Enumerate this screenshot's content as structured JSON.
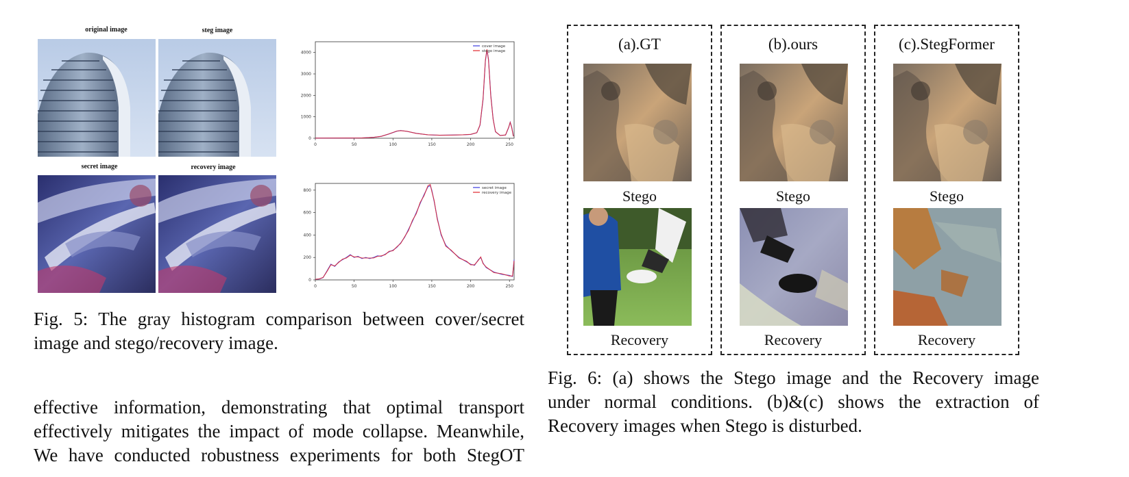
{
  "fig5": {
    "titles": {
      "original": "original image",
      "steg": "steg image",
      "secret": "secret image",
      "recovery": "recovery image"
    },
    "caption_lines": [
      "Fig. 5: The gray histogram comparison between cover/secret",
      "image and stego/recovery image."
    ]
  },
  "chart_data": [
    {
      "type": "line",
      "title": "",
      "xlabel": "",
      "ylabel": "",
      "xlim": [
        0,
        256
      ],
      "ylim": [
        0,
        4500
      ],
      "x_ticks": [
        0,
        50,
        100,
        150,
        200,
        250
      ],
      "y_ticks": [
        0,
        1000,
        2000,
        3000,
        4000
      ],
      "legend_position": "top-right",
      "series": [
        {
          "name": "cover image",
          "color": "#3a3adf",
          "points": [
            [
              0,
              5
            ],
            [
              40,
              8
            ],
            [
              60,
              15
            ],
            [
              75,
              40
            ],
            [
              85,
              90
            ],
            [
              95,
              200
            ],
            [
              105,
              330
            ],
            [
              110,
              360
            ],
            [
              118,
              320
            ],
            [
              130,
              230
            ],
            [
              145,
              160
            ],
            [
              160,
              140
            ],
            [
              175,
              150
            ],
            [
              190,
              160
            ],
            [
              200,
              180
            ],
            [
              208,
              260
            ],
            [
              212,
              600
            ],
            [
              216,
              1800
            ],
            [
              219,
              3600
            ],
            [
              221,
              4100
            ],
            [
              223,
              3700
            ],
            [
              226,
              2000
            ],
            [
              229,
              900
            ],
            [
              232,
              300
            ],
            [
              238,
              130
            ],
            [
              245,
              150
            ],
            [
              249,
              500
            ],
            [
              251,
              750
            ],
            [
              253,
              500
            ],
            [
              255,
              100
            ]
          ]
        },
        {
          "name": "stego image",
          "color": "#e0242c",
          "points": [
            [
              0,
              5
            ],
            [
              40,
              9
            ],
            [
              60,
              14
            ],
            [
              75,
              42
            ],
            [
              85,
              88
            ],
            [
              95,
              205
            ],
            [
              105,
              335
            ],
            [
              110,
              355
            ],
            [
              118,
              325
            ],
            [
              130,
              228
            ],
            [
              145,
              162
            ],
            [
              160,
              142
            ],
            [
              175,
              148
            ],
            [
              190,
              162
            ],
            [
              200,
              182
            ],
            [
              208,
              258
            ],
            [
              212,
              620
            ],
            [
              216,
              1850
            ],
            [
              219,
              3650
            ],
            [
              221,
              4150
            ],
            [
              223,
              3650
            ],
            [
              226,
              1950
            ],
            [
              229,
              880
            ],
            [
              232,
              310
            ],
            [
              238,
              128
            ],
            [
              245,
              152
            ],
            [
              249,
              520
            ],
            [
              251,
              740
            ],
            [
              253,
              480
            ],
            [
              255,
              90
            ]
          ]
        }
      ]
    },
    {
      "type": "line",
      "title": "",
      "xlabel": "",
      "ylabel": "",
      "xlim": [
        0,
        256
      ],
      "ylim": [
        0,
        860
      ],
      "x_ticks": [
        0,
        50,
        100,
        150,
        200,
        250
      ],
      "y_ticks": [
        0,
        200,
        400,
        600,
        800
      ],
      "legend_position": "top-right",
      "series": [
        {
          "name": "secret image",
          "color": "#3a3adf",
          "points": [
            [
              0,
              5
            ],
            [
              5,
              8
            ],
            [
              10,
              20
            ],
            [
              15,
              80
            ],
            [
              20,
              140
            ],
            [
              25,
              120
            ],
            [
              30,
              160
            ],
            [
              35,
              180
            ],
            [
              40,
              200
            ],
            [
              45,
              225
            ],
            [
              50,
              200
            ],
            [
              55,
              210
            ],
            [
              60,
              190
            ],
            [
              65,
              200
            ],
            [
              70,
              190
            ],
            [
              75,
              200
            ],
            [
              80,
              215
            ],
            [
              85,
              210
            ],
            [
              90,
              230
            ],
            [
              95,
              250
            ],
            [
              100,
              265
            ],
            [
              105,
              290
            ],
            [
              110,
              330
            ],
            [
              115,
              380
            ],
            [
              120,
              450
            ],
            [
              125,
              520
            ],
            [
              130,
              600
            ],
            [
              135,
              680
            ],
            [
              140,
              760
            ],
            [
              145,
              830
            ],
            [
              148,
              840
            ],
            [
              150,
              800
            ],
            [
              153,
              700
            ],
            [
              157,
              550
            ],
            [
              162,
              400
            ],
            [
              168,
              310
            ],
            [
              175,
              260
            ],
            [
              185,
              200
            ],
            [
              195,
              160
            ],
            [
              200,
              140
            ],
            [
              205,
              130
            ],
            [
              210,
              180
            ],
            [
              213,
              200
            ],
            [
              216,
              150
            ],
            [
              220,
              110
            ],
            [
              230,
              70
            ],
            [
              240,
              50
            ],
            [
              250,
              40
            ],
            [
              254,
              30
            ],
            [
              256,
              180
            ]
          ]
        },
        {
          "name": "recovery image",
          "color": "#e0242c",
          "points": [
            [
              0,
              5
            ],
            [
              5,
              9
            ],
            [
              10,
              22
            ],
            [
              15,
              75
            ],
            [
              20,
              135
            ],
            [
              25,
              125
            ],
            [
              30,
              155
            ],
            [
              35,
              185
            ],
            [
              40,
              195
            ],
            [
              45,
              220
            ],
            [
              50,
              205
            ],
            [
              55,
              205
            ],
            [
              60,
              195
            ],
            [
              65,
              195
            ],
            [
              70,
              195
            ],
            [
              75,
              195
            ],
            [
              80,
              210
            ],
            [
              85,
              215
            ],
            [
              90,
              225
            ],
            [
              95,
              255
            ],
            [
              100,
              260
            ],
            [
              105,
              295
            ],
            [
              110,
              325
            ],
            [
              115,
              385
            ],
            [
              120,
              440
            ],
            [
              125,
              530
            ],
            [
              130,
              590
            ],
            [
              135,
              690
            ],
            [
              140,
              750
            ],
            [
              145,
              840
            ],
            [
              148,
              850
            ],
            [
              150,
              790
            ],
            [
              153,
              710
            ],
            [
              157,
              540
            ],
            [
              162,
              410
            ],
            [
              168,
              300
            ],
            [
              175,
              265
            ],
            [
              185,
              195
            ],
            [
              195,
              165
            ],
            [
              200,
              135
            ],
            [
              205,
              135
            ],
            [
              210,
              175
            ],
            [
              213,
              205
            ],
            [
              216,
              145
            ],
            [
              220,
              115
            ],
            [
              230,
              65
            ],
            [
              240,
              55
            ],
            [
              250,
              35
            ],
            [
              254,
              35
            ],
            [
              256,
              170
            ]
          ]
        }
      ]
    }
  ],
  "fig6": {
    "panels": [
      {
        "title": "(a).GT",
        "stego_label": "Stego",
        "recovery_label": "Recovery"
      },
      {
        "title": "(b).ours",
        "stego_label": "Stego",
        "recovery_label": "Recovery"
      },
      {
        "title": "(c).StegFormer",
        "stego_label": "Stego",
        "recovery_label": "Recovery"
      }
    ],
    "caption_lines": [
      "Fig. 6: (a) shows the Stego image and the Recovery image",
      "under normal conditions. (b)&(c) shows the extraction of",
      "Recovery images when Stego is disturbed."
    ]
  },
  "body_text_lines": [
    "effective information, demonstrating that optimal transport",
    "effectively mitigates the impact of mode collapse. Meanwhile,",
    "We have conducted robustness experiments for both StegOT"
  ]
}
